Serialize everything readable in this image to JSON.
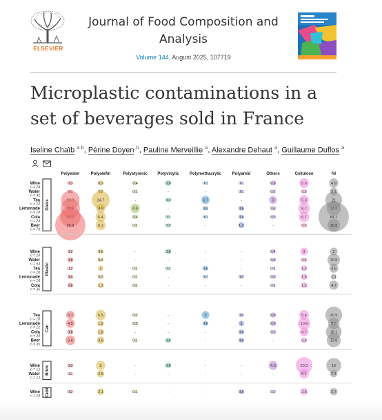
{
  "header": {
    "publisher": "ELSEVIER",
    "journal_title": "Journal of Food Composition and Analysis",
    "volume_label": "Volume 144",
    "issue_info": ", August 2025, 107719",
    "cover_alt": "Journal of Food Composition and Analysis cover"
  },
  "article": {
    "title": "Microplastic contaminations in a set of beverages sold in France",
    "authors": [
      {
        "name": "Iseline Chaïb",
        "aff": "a b"
      },
      {
        "name": "Périne Doyen",
        "aff": "b"
      },
      {
        "name": "Pauline Merveillie",
        "aff": "a"
      },
      {
        "name": "Alexandre Dehaut",
        "aff": "a"
      },
      {
        "name": "Guillaume Duflos",
        "aff": "a"
      }
    ],
    "icons": [
      "person-icon",
      "envelope-icon"
    ]
  },
  "figure": {
    "columns": [
      "Polyester",
      "Polyolefin",
      "Polystyrenic",
      "Polyvinylic",
      "Polymethacrylic",
      "Polyamid",
      "Others",
      "Cellulose",
      "NI"
    ],
    "groups": [
      {
        "label": "Glass",
        "rows": [
          {
            "name": "Wine",
            "n": "n = 24",
            "values": [
              "0.3",
              "0.9",
              "0.4",
              "0.9",
              "0.1",
              "0.1",
              "0.8",
              "5.6",
              "4.9"
            ]
          },
          {
            "name": "Water",
            "n": "n = 42",
            "values": [
              "0.1",
              "0.5",
              "0.1",
              "-",
              "-",
              "0.1",
              "0.2",
              "0.5",
              "3.1"
            ]
          },
          {
            "name": "Tea",
            "n": "n = 12",
            "values": [
              "26.3",
              "24.7",
              "-",
              "0.3",
              "3.7",
              "-",
              "3",
              "5.3",
              "21"
            ]
          },
          {
            "name": "Lemonade",
            "n": "n = 18",
            "values": [
              "28.5",
              "4.9",
              "4.9",
              "-",
              "0.3",
              "0.6",
              "0.3",
              "8.7",
              "14.3"
            ]
          },
          {
            "name": "Cola",
            "n": "n = 24",
            "values": [
              "33.2",
              "6.4",
              "0.4",
              "0.1",
              "0.1",
              "0.4",
              "0.3",
              "6.7",
              "84.1"
            ]
          },
          {
            "name": "Beer",
            "n": "n = 73",
            "values": [
              "95.9",
              "6.1",
              "0.1",
              "0.2",
              "-",
              "1.2",
              "-",
              "0.5",
              "10.5"
            ]
          }
        ]
      },
      {
        "label": "Plastic",
        "rows": [
          {
            "name": "Wine",
            "n": "n = 24",
            "values": [
              "0.2",
              "0.6",
              "-",
              "0.8",
              "-",
              "-",
              "0.4",
              "3",
              "3"
            ]
          },
          {
            "name": "Water",
            "n": "n = 54",
            "values": [
              "0.8",
              "0.4",
              "-",
              "-",
              "-",
              "-",
              "0.3",
              "0.6",
              "10.5"
            ]
          },
          {
            "name": "Tea",
            "n": "n = 18",
            "values": [
              "0.2",
              "1",
              "0.1",
              "0.1",
              "0.6",
              "-",
              "0.1",
              "1.2",
              "4.5"
            ]
          },
          {
            "name": "Lemonade",
            "n": "n = 18",
            "values": [
              "0.4",
              "0.3",
              "0.1",
              "-",
              "0.1",
              "0.2",
              "0.3",
              "1.6",
              "1.1"
            ]
          },
          {
            "name": "Cola",
            "n": "n = 36",
            "values": [
              "0.6",
              "1.3",
              "0.1",
              "-",
              "-",
              "-",
              "0.1",
              "1.2",
              "4.7"
            ]
          }
        ]
      },
      {
        "label": "Can",
        "rows": [
          {
            "name": "Tea",
            "n": "n = 18",
            "values": [
              "3.7",
              "6.5",
              "0.2",
              "-",
              "3",
              "0.2",
              "0.8",
              "5.4",
              "20.9"
            ]
          },
          {
            "name": "Lemonade",
            "n": "n = 12",
            "values": [
              "4.5",
              "1.5",
              "0.3",
              "-",
              "0.6",
              "1",
              "0.8",
              "10.6",
              "8.6"
            ]
          },
          {
            "name": "Cola",
            "n": "n = 24",
            "values": [
              "0.8",
              "1.8",
              "-",
              "-",
              "-",
              "0.6",
              "0.3",
              "4.7",
              "18.1"
            ]
          },
          {
            "name": "Beer",
            "n": "n = 35",
            "values": [
              "5.6",
              "2.6",
              "0.1",
              "0.6",
              "-",
              "0.6",
              "-",
              "0.9",
              "13.6"
            ]
          }
        ]
      },
      {
        "label": "Brick",
        "rows": [
          {
            "name": "Wine",
            "n": "n = 12",
            "values": [
              "0.3",
              "5",
              "-",
              "0.8",
              "-",
              "-",
              "4.3",
              "20.3",
              "16"
            ]
          },
          {
            "name": "Water",
            "n": "n = 12",
            "values": [
              "0.1",
              "2.5",
              "-",
              "-",
              "-",
              "-",
              "-",
              "5.1",
              "2.4"
            ]
          }
        ]
      },
      {
        "label": "Cubi",
        "rows": [
          {
            "name": "Wine",
            "n": "n = 18",
            "values": [
              "0.2",
              "2.1",
              "0.1",
              "-",
              "-",
              "0.6",
              "0.2",
              "2.6",
              "2.7"
            ]
          }
        ]
      }
    ],
    "colors": {
      "Polyester": "#ef6b6b",
      "Polyolefin": "#d9b540",
      "Polystyrenic": "#9fbf56",
      "Polyvinylic": "#57b58a",
      "Polymethacrylic": "#4b9ccf",
      "Polyamid": "#6f7fd6",
      "Others": "#b07ad6",
      "Cellulose": "#ee88dc",
      "NI": "#8d8d8d"
    }
  }
}
